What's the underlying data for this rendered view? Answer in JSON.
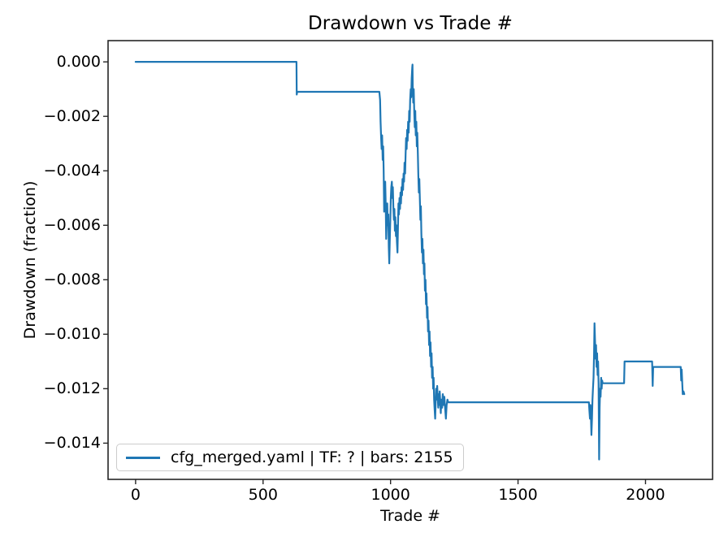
{
  "figure": {
    "title": "Drawdown vs Trade #"
  },
  "colors": {
    "line": "#1f77b4",
    "spine": "#262626",
    "text": "#000000",
    "legend_border": "#cccccc",
    "background": "#ffffff"
  },
  "chart_data": {
    "type": "line",
    "title": "Drawdown vs Trade #",
    "xlabel": "Trade #",
    "ylabel": "Drawdown (fraction)",
    "xlim": [
      -108,
      2263
    ],
    "ylim": [
      -0.01533,
      0.00078
    ],
    "grid": false,
    "xticks": [
      0,
      500,
      1000,
      1500,
      2000
    ],
    "xtick_labels": [
      "0",
      "500",
      "1000",
      "1500",
      "2000"
    ],
    "yticks": [
      0.0,
      -0.002,
      -0.004,
      -0.006,
      -0.008,
      -0.01,
      -0.012,
      -0.014
    ],
    "ytick_labels": [
      "0.000",
      "−0.002",
      "−0.004",
      "−0.006",
      "−0.008",
      "−0.010",
      "−0.012",
      "−0.014"
    ],
    "legend": {
      "position": "lower left",
      "entries": [
        {
          "label": "cfg_merged.yaml | TF: ? | bars: 2155",
          "color": "#1f77b4"
        }
      ]
    },
    "series": [
      {
        "name": "cfg_merged.yaml | TF: ? | bars: 2155",
        "color": "#1f77b4",
        "points": [
          [
            0,
            0
          ],
          [
            631,
            0
          ],
          [
            632,
            -0.0012
          ],
          [
            634,
            -0.0011
          ],
          [
            956,
            -0.0011
          ],
          [
            959,
            -0.0014
          ],
          [
            961,
            -0.0022
          ],
          [
            963,
            -0.0028
          ],
          [
            965,
            -0.0032
          ],
          [
            967,
            -0.0027
          ],
          [
            969,
            -0.0036
          ],
          [
            971,
            -0.0031
          ],
          [
            973,
            -0.004
          ],
          [
            975,
            -0.0055
          ],
          [
            977,
            -0.0048
          ],
          [
            979,
            -0.0044
          ],
          [
            981,
            -0.0052
          ],
          [
            983,
            -0.0065
          ],
          [
            985,
            -0.0058
          ],
          [
            987,
            -0.0052
          ],
          [
            989,
            -0.006
          ],
          [
            991,
            -0.0056
          ],
          [
            993,
            -0.0068
          ],
          [
            995,
            -0.0074
          ],
          [
            997,
            -0.0066
          ],
          [
            999,
            -0.0058
          ],
          [
            1001,
            -0.005
          ],
          [
            1003,
            -0.0046
          ],
          [
            1005,
            -0.0044
          ],
          [
            1007,
            -0.005
          ],
          [
            1009,
            -0.0046
          ],
          [
            1011,
            -0.0053
          ],
          [
            1013,
            -0.0058
          ],
          [
            1015,
            -0.0054
          ],
          [
            1017,
            -0.0062
          ],
          [
            1019,
            -0.0057
          ],
          [
            1021,
            -0.0064
          ],
          [
            1023,
            -0.006
          ],
          [
            1025,
            -0.0066
          ],
          [
            1027,
            -0.007
          ],
          [
            1029,
            -0.0061
          ],
          [
            1031,
            -0.0052
          ],
          [
            1033,
            -0.0056
          ],
          [
            1035,
            -0.005
          ],
          [
            1037,
            -0.0054
          ],
          [
            1039,
            -0.0048
          ],
          [
            1041,
            -0.0052
          ],
          [
            1043,
            -0.0046
          ],
          [
            1045,
            -0.0049
          ],
          [
            1047,
            -0.0043
          ],
          [
            1049,
            -0.0047
          ],
          [
            1051,
            -0.0041
          ],
          [
            1053,
            -0.0044
          ],
          [
            1055,
            -0.0037
          ],
          [
            1057,
            -0.0041
          ],
          [
            1059,
            -0.0034
          ],
          [
            1061,
            -0.0028
          ],
          [
            1063,
            -0.0032
          ],
          [
            1065,
            -0.0025
          ],
          [
            1067,
            -0.0029
          ],
          [
            1069,
            -0.0022
          ],
          [
            1071,
            -0.0026
          ],
          [
            1073,
            -0.0018
          ],
          [
            1075,
            -0.0022
          ],
          [
            1077,
            -0.0014
          ],
          [
            1079,
            -0.001
          ],
          [
            1081,
            -0.0013
          ],
          [
            1083,
            -0.0006
          ],
          [
            1085,
            -0.0002
          ],
          [
            1086,
            -0.0001
          ],
          [
            1087,
            -0.0009
          ],
          [
            1089,
            -0.0015
          ],
          [
            1091,
            -0.001
          ],
          [
            1093,
            -0.0019
          ],
          [
            1095,
            -0.0024
          ],
          [
            1097,
            -0.0018
          ],
          [
            1099,
            -0.0027
          ],
          [
            1101,
            -0.0022
          ],
          [
            1103,
            -0.0031
          ],
          [
            1105,
            -0.0026
          ],
          [
            1107,
            -0.0034
          ],
          [
            1109,
            -0.0042
          ],
          [
            1111,
            -0.0048
          ],
          [
            1113,
            -0.0043
          ],
          [
            1115,
            -0.0051
          ],
          [
            1117,
            -0.0058
          ],
          [
            1119,
            -0.0053
          ],
          [
            1121,
            -0.0063
          ],
          [
            1123,
            -0.007
          ],
          [
            1125,
            -0.0065
          ],
          [
            1127,
            -0.0074
          ],
          [
            1129,
            -0.0069
          ],
          [
            1131,
            -0.0078
          ],
          [
            1133,
            -0.0074
          ],
          [
            1135,
            -0.0084
          ],
          [
            1137,
            -0.008
          ],
          [
            1139,
            -0.0089
          ],
          [
            1141,
            -0.0085
          ],
          [
            1143,
            -0.0094
          ],
          [
            1145,
            -0.009
          ],
          [
            1147,
            -0.0099
          ],
          [
            1149,
            -0.0095
          ],
          [
            1151,
            -0.0104
          ],
          [
            1153,
            -0.0099
          ],
          [
            1155,
            -0.0108
          ],
          [
            1157,
            -0.0103
          ],
          [
            1159,
            -0.0112
          ],
          [
            1161,
            -0.0107
          ],
          [
            1163,
            -0.0116
          ],
          [
            1165,
            -0.0112
          ],
          [
            1167,
            -0.012
          ],
          [
            1169,
            -0.0116
          ],
          [
            1171,
            -0.0124
          ],
          [
            1173,
            -0.0128
          ],
          [
            1175,
            -0.0131
          ],
          [
            1177,
            -0.0125
          ],
          [
            1179,
            -0.012
          ],
          [
            1181,
            -0.0124
          ],
          [
            1183,
            -0.0119
          ],
          [
            1185,
            -0.0123
          ],
          [
            1187,
            -0.0127
          ],
          [
            1189,
            -0.0122
          ],
          [
            1191,
            -0.0126
          ],
          [
            1193,
            -0.0121
          ],
          [
            1195,
            -0.0125
          ],
          [
            1197,
            -0.0129
          ],
          [
            1199,
            -0.0124
          ],
          [
            1202,
            -0.0127
          ],
          [
            1205,
            -0.0122
          ],
          [
            1208,
            -0.0126
          ],
          [
            1211,
            -0.0123
          ],
          [
            1214,
            -0.0127
          ],
          [
            1217,
            -0.0131
          ],
          [
            1220,
            -0.0126
          ],
          [
            1223,
            -0.0124
          ],
          [
            1226,
            -0.0125
          ],
          [
            1778,
            -0.0125
          ],
          [
            1780,
            -0.0128
          ],
          [
            1782,
            -0.0131
          ],
          [
            1784,
            -0.0126
          ],
          [
            1786,
            -0.013
          ],
          [
            1788,
            -0.0137
          ],
          [
            1790,
            -0.0131
          ],
          [
            1792,
            -0.0124
          ],
          [
            1794,
            -0.012
          ],
          [
            1796,
            -0.0116
          ],
          [
            1798,
            -0.0108
          ],
          [
            1800,
            -0.0096
          ],
          [
            1802,
            -0.0102
          ],
          [
            1804,
            -0.0109
          ],
          [
            1806,
            -0.0104
          ],
          [
            1808,
            -0.0112
          ],
          [
            1810,
            -0.0107
          ],
          [
            1812,
            -0.0115
          ],
          [
            1814,
            -0.011
          ],
          [
            1816,
            -0.0118
          ],
          [
            1818,
            -0.0146
          ],
          [
            1820,
            -0.0127
          ],
          [
            1822,
            -0.012
          ],
          [
            1824,
            -0.0123
          ],
          [
            1826,
            -0.0116
          ],
          [
            1828,
            -0.012
          ],
          [
            1830,
            -0.0117
          ],
          [
            1832,
            -0.0118
          ],
          [
            1916,
            -0.0118
          ],
          [
            1918,
            -0.011
          ],
          [
            2026,
            -0.011
          ],
          [
            2028,
            -0.0119
          ],
          [
            2030,
            -0.0112
          ],
          [
            2138,
            -0.0112
          ],
          [
            2140,
            -0.0117
          ],
          [
            2142,
            -0.0113
          ],
          [
            2144,
            -0.0118
          ],
          [
            2146,
            -0.0122
          ],
          [
            2149,
            -0.0121
          ],
          [
            2152,
            -0.0122
          ]
        ]
      }
    ]
  }
}
